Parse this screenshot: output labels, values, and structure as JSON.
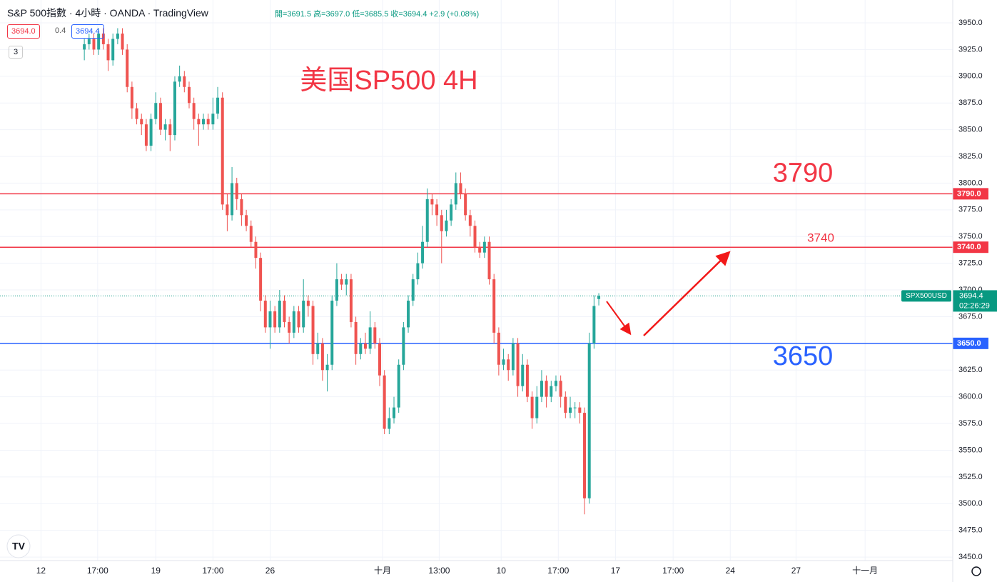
{
  "header": {
    "title": "S&P 500指數 · 4小時 · OANDA · TradingView",
    "ohlc": "開=3691.5 高=3697.0 低=3685.5 收=3694.4 +2.9 (+0.08%)",
    "sell": "3694.0",
    "spread": "0.4",
    "buy": "3694.4",
    "indicators": "3"
  },
  "chart_data": {
    "type": "candlestick",
    "title": "美国SP500 4H",
    "up_color": "#26a69a",
    "down_color": "#ef5350",
    "open": [
      3925,
      3930,
      3935,
      3925,
      3940,
      3930,
      3915,
      3935,
      3940,
      3925,
      3890,
      3870,
      3860,
      3855,
      3835,
      3860,
      3875,
      3850,
      3855,
      3845,
      3895,
      3900,
      3890,
      3875,
      3860,
      3855,
      3860,
      3855,
      3865,
      3880,
      3780,
      3770,
      3800,
      3785,
      3770,
      3760,
      3745,
      3730,
      3690,
      3665,
      3680,
      3665,
      3690,
      3670,
      3660,
      3680,
      3665,
      3690,
      3685,
      3640,
      3650,
      3625,
      3630,
      3690,
      3710,
      3705,
      3710,
      3670,
      3640,
      3650,
      3645,
      3665,
      3650,
      3620,
      3570,
      3580,
      3590,
      3630,
      3665,
      3690,
      3710,
      3725,
      3745,
      3785,
      3780,
      3770,
      3755,
      3765,
      3780,
      3800,
      3790,
      3770,
      3760,
      3740,
      3735,
      3745,
      3710,
      3660,
      3630,
      3635,
      3625,
      3650,
      3610,
      3630,
      3600,
      3580,
      3600,
      3615,
      3600,
      3610,
      3615,
      3600,
      3585,
      3590,
      3590,
      3585,
      3505,
      3650,
      3691.5
    ],
    "high": [
      3935,
      3940,
      3940,
      3945,
      3945,
      3935,
      3940,
      3945,
      3945,
      3930,
      3895,
      3875,
      3865,
      3860,
      3865,
      3885,
      3880,
      3860,
      3860,
      3900,
      3910,
      3905,
      3895,
      3880,
      3865,
      3865,
      3865,
      3880,
      3890,
      3885,
      3790,
      3815,
      3805,
      3790,
      3775,
      3765,
      3750,
      3735,
      3695,
      3690,
      3685,
      3700,
      3695,
      3675,
      3685,
      3685,
      3710,
      3695,
      3690,
      3660,
      3655,
      3640,
      3695,
      3725,
      3715,
      3715,
      3715,
      3675,
      3655,
      3660,
      3680,
      3670,
      3655,
      3625,
      3590,
      3600,
      3635,
      3670,
      3695,
      3715,
      3735,
      3760,
      3795,
      3790,
      3785,
      3775,
      3775,
      3785,
      3810,
      3810,
      3795,
      3775,
      3765,
      3745,
      3750,
      3750,
      3715,
      3665,
      3645,
      3640,
      3655,
      3655,
      3640,
      3635,
      3605,
      3610,
      3625,
      3620,
      3615,
      3620,
      3620,
      3605,
      3600,
      3595,
      3595,
      3590,
      3660,
      3695,
      3697
    ],
    "low": [
      3915,
      3925,
      3920,
      3920,
      3925,
      3905,
      3910,
      3930,
      3920,
      3885,
      3860,
      3855,
      3845,
      3830,
      3830,
      3855,
      3845,
      3840,
      3830,
      3840,
      3890,
      3885,
      3870,
      3850,
      3835,
      3850,
      3850,
      3850,
      3860,
      3775,
      3755,
      3765,
      3775,
      3760,
      3755,
      3740,
      3720,
      3680,
      3660,
      3645,
      3660,
      3660,
      3665,
      3650,
      3655,
      3660,
      3660,
      3675,
      3630,
      3635,
      3615,
      3605,
      3625,
      3685,
      3700,
      3695,
      3665,
      3630,
      3635,
      3640,
      3640,
      3645,
      3610,
      3565,
      3565,
      3575,
      3585,
      3625,
      3660,
      3685,
      3705,
      3720,
      3740,
      3770,
      3760,
      3725,
      3750,
      3760,
      3775,
      3785,
      3765,
      3750,
      3735,
      3730,
      3730,
      3705,
      3650,
      3620,
      3625,
      3615,
      3620,
      3600,
      3605,
      3595,
      3570,
      3575,
      3595,
      3590,
      3595,
      3605,
      3590,
      3580,
      3580,
      3580,
      3575,
      3490,
      3500,
      3645,
      3685.5
    ],
    "close": [
      3930,
      3935,
      3925,
      3940,
      3930,
      3915,
      3935,
      3940,
      3925,
      3890,
      3870,
      3860,
      3855,
      3835,
      3860,
      3875,
      3850,
      3855,
      3845,
      3895,
      3900,
      3890,
      3875,
      3860,
      3855,
      3860,
      3855,
      3865,
      3880,
      3780,
      3770,
      3800,
      3785,
      3770,
      3760,
      3745,
      3730,
      3690,
      3665,
      3680,
      3665,
      3690,
      3670,
      3660,
      3680,
      3665,
      3690,
      3685,
      3640,
      3650,
      3625,
      3630,
      3690,
      3710,
      3705,
      3710,
      3670,
      3640,
      3650,
      3645,
      3665,
      3650,
      3620,
      3570,
      3580,
      3590,
      3630,
      3665,
      3690,
      3710,
      3725,
      3745,
      3785,
      3780,
      3770,
      3755,
      3765,
      3780,
      3800,
      3790,
      3770,
      3760,
      3740,
      3735,
      3745,
      3710,
      3660,
      3630,
      3635,
      3625,
      3650,
      3610,
      3630,
      3600,
      3580,
      3600,
      3615,
      3600,
      3610,
      3615,
      3600,
      3585,
      3590,
      3590,
      3585,
      3505,
      3650,
      3685,
      3694.4
    ],
    "xlim": [
      -17.7,
      182.3
    ],
    "xticks": [
      {
        "value": -9.1,
        "label": "12"
      },
      {
        "value": 2.8,
        "label": "17:00"
      },
      {
        "value": 15,
        "label": "19"
      },
      {
        "value": 27,
        "label": "17:00"
      },
      {
        "value": 39,
        "label": "26"
      },
      {
        "value": 62.6,
        "label": "十月"
      },
      {
        "value": 74.5,
        "label": "13:00"
      },
      {
        "value": 87.5,
        "label": "10"
      },
      {
        "value": 99.5,
        "label": "17:00"
      },
      {
        "value": 111.5,
        "label": "17"
      },
      {
        "value": 123.6,
        "label": "17:00"
      },
      {
        "value": 135.6,
        "label": "24"
      },
      {
        "value": 149.4,
        "label": "27"
      },
      {
        "value": 163.9,
        "label": "十一月"
      }
    ],
    "ylim": [
      3446.7,
      3971.4
    ],
    "yticks": [
      {
        "value": 3450,
        "label": "3450.0"
      },
      {
        "value": 3475,
        "label": "3475.0"
      },
      {
        "value": 3500,
        "label": "3500.0"
      },
      {
        "value": 3525,
        "label": "3525.0"
      },
      {
        "value": 3550,
        "label": "3550.0"
      },
      {
        "value": 3575,
        "label": "3575.0"
      },
      {
        "value": 3600,
        "label": "3600.0"
      },
      {
        "value": 3625,
        "label": "3625.0"
      },
      {
        "value": 3650,
        "label": "3650.0"
      },
      {
        "value": 3675,
        "label": "3675.0"
      },
      {
        "value": 3700,
        "label": "3700.0"
      },
      {
        "value": 3725,
        "label": "3725.0"
      },
      {
        "value": 3750,
        "label": "3750.0"
      },
      {
        "value": 3775,
        "label": "3775.0"
      },
      {
        "value": 3800,
        "label": "3800.0"
      },
      {
        "value": 3825,
        "label": "3825.0"
      },
      {
        "value": 3850,
        "label": "3850.0"
      },
      {
        "value": 3875,
        "label": "3875.0"
      },
      {
        "value": 3900,
        "label": "3900.0"
      },
      {
        "value": 3925,
        "label": "3925.0"
      },
      {
        "value": 3950,
        "label": "3950.0"
      }
    ],
    "grid": true,
    "levels": [
      {
        "value": 3790,
        "label": "3790.0",
        "text": "3790",
        "color": "#f23645",
        "size": "big"
      },
      {
        "value": 3740,
        "label": "3740.0",
        "text": "3740",
        "color": "#f23645",
        "size": "small"
      },
      {
        "value": 3650,
        "label": "3650.0",
        "text": "3650",
        "color": "#2962ff",
        "size": "big"
      }
    ],
    "last": {
      "value": 3694.4,
      "symbol": "SPX500USD",
      "countdown": "02:26:29",
      "color": "#089981"
    }
  }
}
